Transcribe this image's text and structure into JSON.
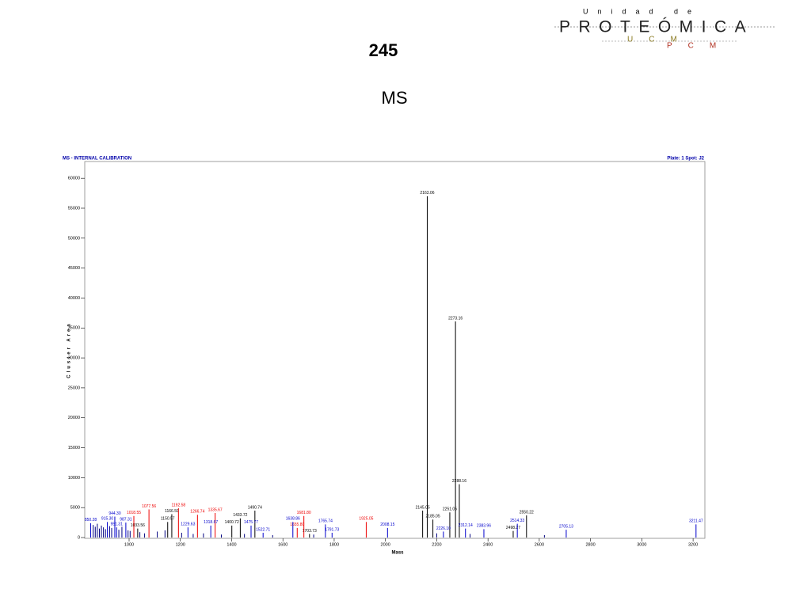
{
  "header": {
    "title": "245",
    "subtitle": "MS"
  },
  "logo": {
    "line1": "Unidad de",
    "name": "PROTEÓMICA",
    "ucm": "UCM",
    "pcm": "PCM"
  },
  "chart_data": {
    "type": "spectrum",
    "title": "MS - INTERNAL CALIBRATION",
    "plate_label": "Plate: 1 Spot: J2",
    "xlabel": "Mass",
    "ylabel": "Cluster Area",
    "xlim": [
      827,
      3246
    ],
    "ylim": [
      0,
      62800
    ],
    "xticks": [
      1000,
      1200,
      1400,
      1600,
      1800,
      2000,
      2200,
      2400,
      2600,
      2800,
      3000,
      3200
    ],
    "yticks": [
      0,
      5000,
      10000,
      15000,
      20000,
      25000,
      30000,
      35000,
      40000,
      45000,
      50000,
      55000,
      60000
    ],
    "series": [
      {
        "color": "#000000",
        "x": [
          1033.56,
          1150.57,
          1166.59,
          1400.72,
          1433.72,
          1490.74,
          1703.73,
          2145.05,
          2163.06,
          2185.05,
          2251.05,
          2273.16,
          2288.16,
          2498.27,
          2550.22
        ],
        "x_labels": [
          "1033.56",
          "1150.57",
          "1166.59",
          "1400.72",
          "1433.72",
          "1490.74",
          "1703.73",
          "2145.05",
          "2163.06",
          "2185.05",
          "2251.05",
          "2273.16",
          "2288.16",
          "2498.27",
          "2550.22"
        ],
        "values": [
          1500,
          2600,
          3900,
          2000,
          3200,
          4500,
          600,
          4500,
          57000,
          3000,
          4200,
          36100,
          8900,
          1100,
          3700
        ]
      },
      {
        "color": "#ee0000",
        "x": [
          1018.55,
          1077.56,
          1192.58,
          1266.74,
          1335.67,
          1655.8,
          1681.8,
          1925.05
        ],
        "x_labels": [
          "1018.55",
          "1077.56",
          "1192.58",
          "1266.74",
          "1335.67",
          "1655.80",
          "1681.80",
          "1925.05"
        ],
        "values": [
          3600,
          4700,
          4900,
          3800,
          4100,
          1600,
          3600,
          2600
        ]
      },
      {
        "color": "#0000cc",
        "x": [
          850.28,
          915.3,
          944.3,
          951.31,
          987.31,
          1229.63,
          1318.67,
          1475.77,
          1522.71,
          1638.86,
          1765.74,
          1791.73,
          2008.15,
          2226.1,
          2312.14,
          2383.96,
          2514.33,
          2705.13,
          3211.47
        ],
        "x_labels": [
          "850.28",
          "915.30",
          "944.30",
          "951.31",
          "987.31",
          "1229.63",
          "1318.67",
          "1475.77",
          "1522.71",
          "1638.86",
          "1765.74",
          "1791.73",
          "2008.15",
          "2226.10",
          "2312.14",
          "2383.96",
          "2514.33",
          "2705.13",
          "3211.47"
        ],
        "values": [
          2400,
          2600,
          3500,
          1700,
          2500,
          1700,
          2000,
          2000,
          800,
          2600,
          2200,
          800,
          1600,
          1000,
          1500,
          1400,
          2300,
          1300,
          2200
        ]
      },
      {
        "color": "#000080",
        "x": [
          860,
          868,
          876,
          884,
          892,
          900,
          908,
          924,
          932,
          960,
          972,
          996,
          1004,
          1042,
          1060,
          1110,
          1140,
          1205,
          1250,
          1290,
          1360,
          1450,
          1560,
          1720,
          2200,
          2330,
          2620
        ],
        "values": [
          2100,
          1800,
          2300,
          1500,
          2000,
          1700,
          1400,
          1900,
          1600,
          1300,
          1800,
          1200,
          1100,
          900,
          700,
          1000,
          1200,
          800,
          600,
          700,
          500,
          600,
          400,
          500,
          700,
          600,
          400
        ]
      }
    ]
  }
}
